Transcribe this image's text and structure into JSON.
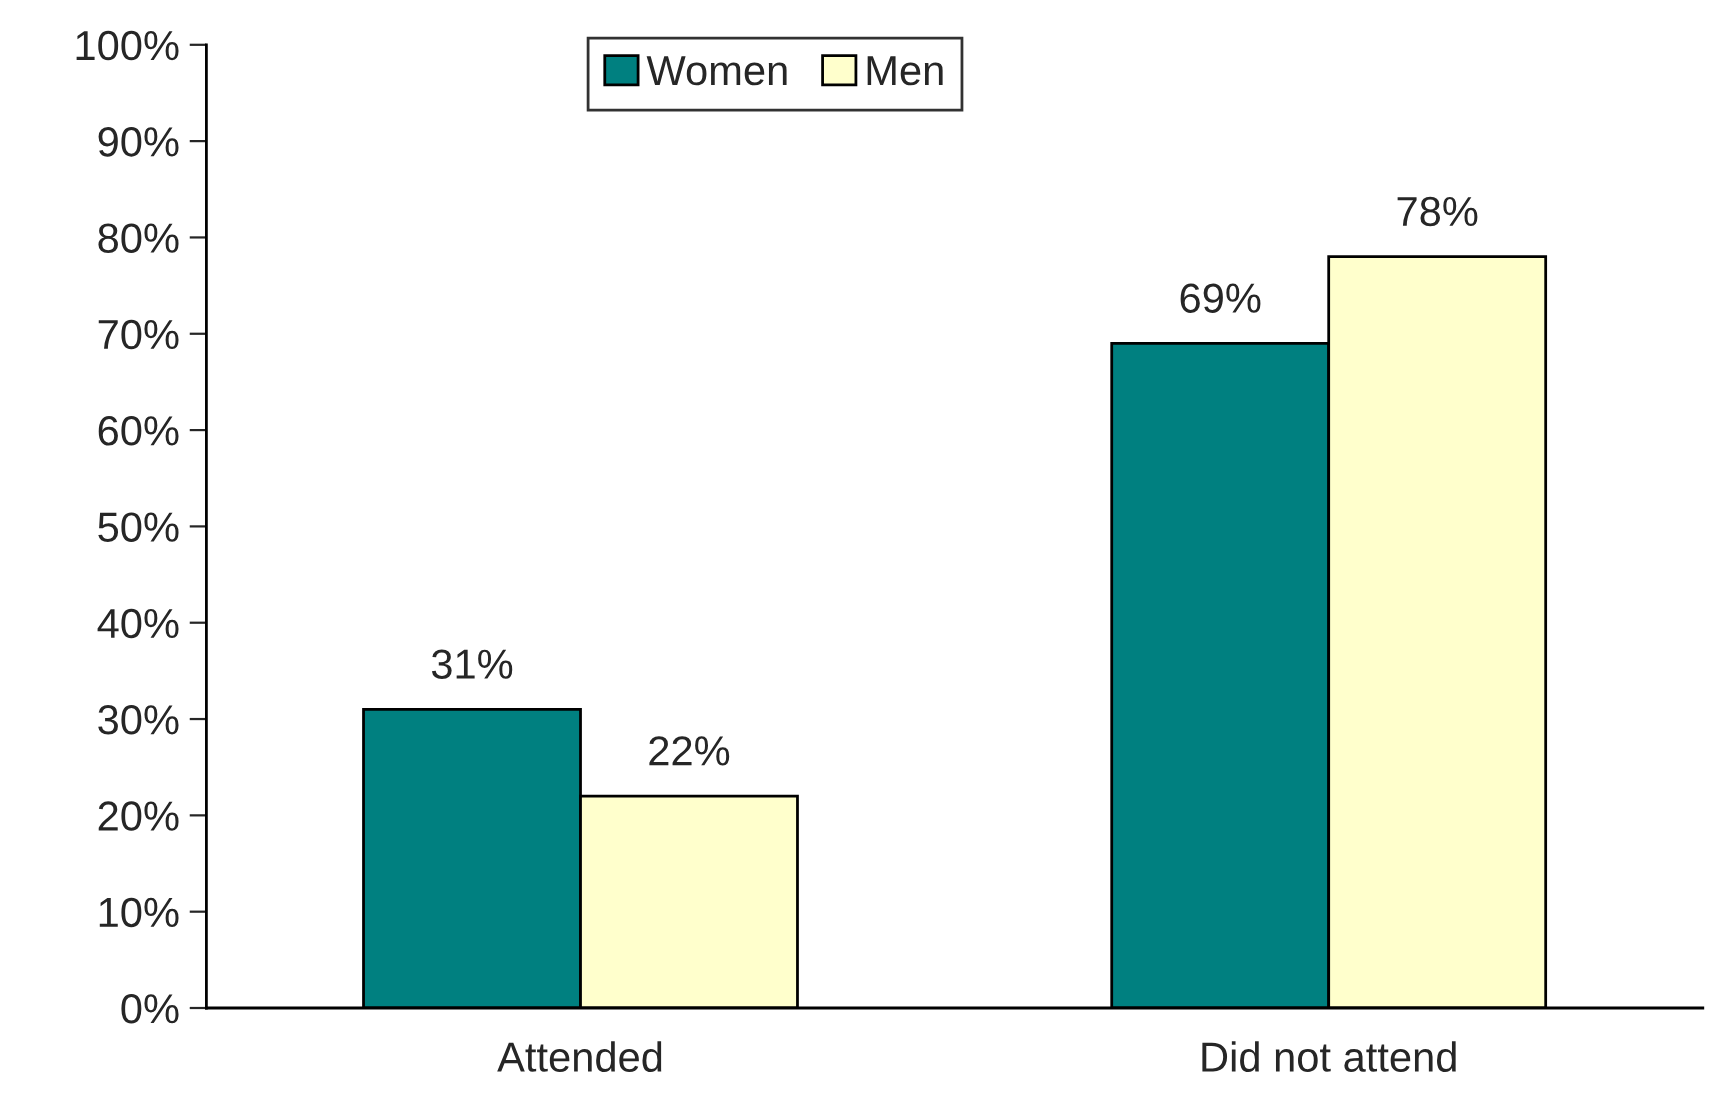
{
  "chart_data": {
    "type": "bar",
    "categories": [
      "Attended",
      "Did not attend"
    ],
    "series": [
      {
        "name": "Women",
        "color": "#008080",
        "values": [
          31,
          69
        ],
        "value_labels": [
          "31%",
          "69%"
        ]
      },
      {
        "name": "Men",
        "color": "#ffffcc",
        "values": [
          22,
          78
        ],
        "value_labels": [
          "22%",
          "78%"
        ]
      }
    ],
    "ylim": [
      0,
      100
    ],
    "yticks": [
      {
        "value": 0,
        "label": "0%"
      },
      {
        "value": 10,
        "label": "10%"
      },
      {
        "value": 20,
        "label": "20%"
      },
      {
        "value": 30,
        "label": "30%"
      },
      {
        "value": 40,
        "label": "40%"
      },
      {
        "value": 50,
        "label": "50%"
      },
      {
        "value": 60,
        "label": "60%"
      },
      {
        "value": 70,
        "label": "70%"
      },
      {
        "value": 80,
        "label": "80%"
      },
      {
        "value": 90,
        "label": "90%"
      },
      {
        "value": 100,
        "label": "100%"
      }
    ],
    "grid": false,
    "legend": "top"
  }
}
